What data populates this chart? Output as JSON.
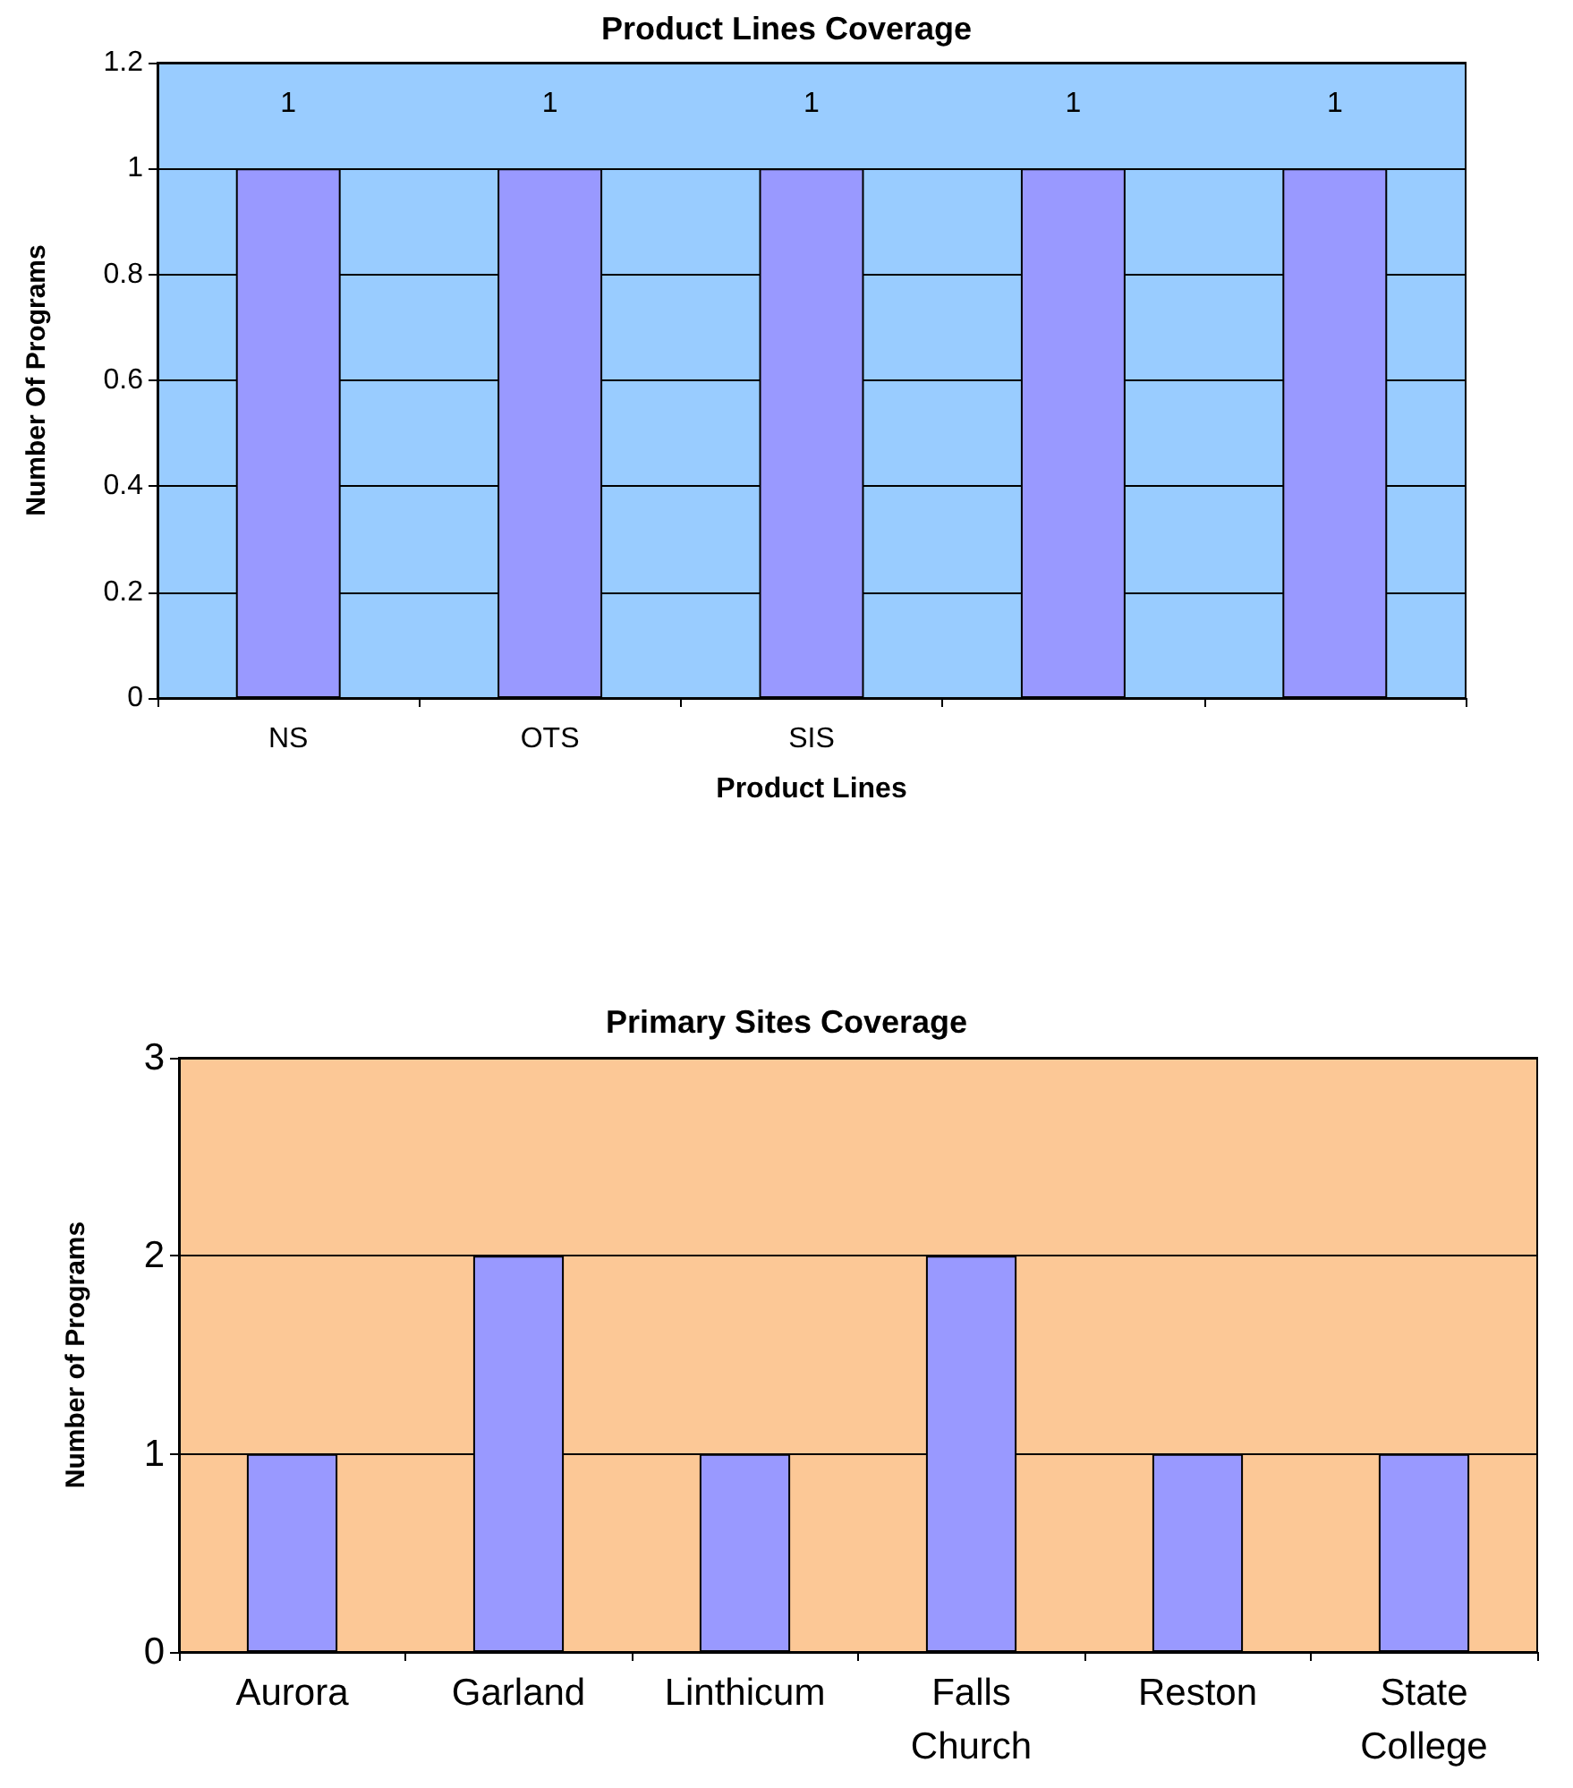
{
  "chart_data": [
    {
      "type": "bar",
      "title": "Product Lines Coverage",
      "xlabel": "Product Lines",
      "ylabel": "Number Of Programs",
      "categories": [
        "NS",
        "OTS",
        "SIS",
        null,
        null
      ],
      "values": [
        1,
        1,
        1,
        1,
        1
      ],
      "color": "#9999ff",
      "ylim": [
        0,
        1.2
      ],
      "yticks": [
        0,
        0.2,
        0.4,
        0.6,
        0.8,
        1,
        1.2
      ],
      "grid": "y",
      "data_labels": true
    },
    {
      "type": "bar",
      "title": "Primary Sites Coverage",
      "ylabel": "Number of Programs",
      "categories": [
        "Aurora",
        "Garland",
        "Linthicum",
        "Falls Church",
        "Reston",
        "State College"
      ],
      "values": [
        1,
        2,
        1,
        2,
        1,
        1
      ],
      "color": "#9999ff",
      "ylim": [
        0,
        3
      ],
      "yticks": [
        0,
        1,
        2,
        3
      ],
      "grid": "y"
    }
  ]
}
